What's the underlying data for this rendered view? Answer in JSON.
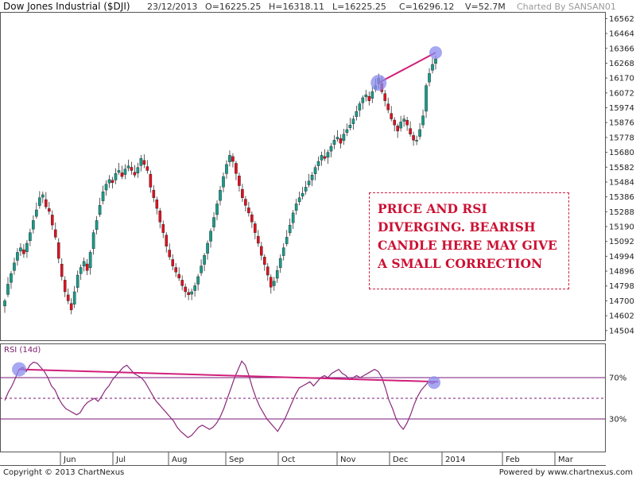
{
  "header": {
    "title": "Dow Jones Industrial ($DJI)",
    "date": "23/12/2013",
    "open": "O=16225.25",
    "high": "H=16318.11",
    "low": "L=16225.25",
    "close": "C=16296.12",
    "volume": "V=52.7M",
    "credit": "Charted By SANSAN01"
  },
  "footer": {
    "copyright": "Copyright © 2013 ChartNexus",
    "powered": "Powered by www.chartnexus.com"
  },
  "annotation": {
    "lines": [
      "PRICE AND RSI",
      "DIVERGING. BEARISH",
      "CANDLE HERE MAY GIVE",
      "A SMALL CORRECTION"
    ]
  },
  "colors": {
    "up": "#1a9a8a",
    "down": "#e01020",
    "rsi_line": "#8a2a7a",
    "rsi_levels": "#7a1a7a",
    "trendline": "#d0207a",
    "marker": "#8a8aee"
  },
  "chart_data": [
    {
      "type": "candlestick",
      "title": "Dow Jones Industrial ($DJI)",
      "y_ticks": [
        16562,
        16464,
        16366,
        16268,
        16170,
        16072,
        15974,
        15876,
        15778,
        15680,
        15582,
        15484,
        15386,
        15288,
        15190,
        15092,
        14994,
        14896,
        14798,
        14700,
        14602,
        14504
      ],
      "ylim": [
        14440,
        16580
      ],
      "x_tick_labels": [
        "Jun",
        "Jul",
        "Aug",
        "Sep",
        "Oct",
        "Nov",
        "Dec",
        "2014",
        "Feb",
        "Mar"
      ],
      "legend": "none",
      "grid": false,
      "series": [
        {
          "name": "Dow Jones Industrial ($DJI)",
          "values": [
            14700,
            14810,
            14880,
            14950,
            15020,
            15050,
            15010,
            15080,
            15150,
            15230,
            15300,
            15380,
            15400,
            15320,
            15290,
            15200,
            15120,
            14980,
            14860,
            14760,
            14700,
            14640,
            14760,
            14870,
            14920,
            14960,
            14900,
            15020,
            15150,
            15230,
            15330,
            15420,
            15470,
            15500,
            15480,
            15540,
            15560,
            15520,
            15570,
            15590,
            15560,
            15530,
            15580,
            15640,
            15600,
            15560,
            15450,
            15380,
            15310,
            15220,
            15150,
            15060,
            14990,
            14930,
            14890,
            14850,
            14800,
            14760,
            14740,
            14760,
            14800,
            14860,
            14930,
            15000,
            15080,
            15160,
            15250,
            15340,
            15430,
            15520,
            15600,
            15660,
            15620,
            15540,
            15460,
            15380,
            15330,
            15280,
            15220,
            15150,
            15080,
            15000,
            14940,
            14870,
            14790,
            14830,
            14900,
            14980,
            15050,
            15120,
            15200,
            15280,
            15340,
            15380,
            15410,
            15450,
            15490,
            15530,
            15580,
            15620,
            15660,
            15640,
            15680,
            15720,
            15760,
            15780,
            15740,
            15800,
            15830,
            15860,
            15900,
            15950,
            16000,
            16040,
            16060,
            16020,
            16080,
            16120,
            16170,
            16080,
            16020,
            15960,
            15900,
            15860,
            15820,
            15880,
            15900,
            15860,
            15800,
            15760,
            15760,
            15830,
            15920,
            16120,
            16200,
            16260,
            16296
          ]
        }
      ]
    },
    {
      "type": "line",
      "title": "RSI (14d)",
      "y_ticks": [
        "70%",
        "30%"
      ],
      "levels": [
        70,
        50,
        30
      ],
      "ylim": [
        0,
        100
      ],
      "legend": "none",
      "series": [
        {
          "name": "RSI (14d)",
          "values": [
            48,
            56,
            62,
            70,
            78,
            80,
            76,
            82,
            85,
            84,
            80,
            76,
            70,
            62,
            58,
            50,
            44,
            40,
            38,
            36,
            34,
            36,
            42,
            46,
            48,
            50,
            47,
            52,
            58,
            62,
            68,
            72,
            76,
            80,
            82,
            78,
            74,
            72,
            70,
            66,
            60,
            54,
            48,
            44,
            40,
            36,
            32,
            28,
            22,
            18,
            15,
            12,
            14,
            18,
            22,
            24,
            22,
            20,
            22,
            26,
            32,
            40,
            50,
            60,
            70,
            78,
            86,
            82,
            72,
            60,
            50,
            42,
            36,
            30,
            26,
            22,
            18,
            24,
            30,
            38,
            46,
            54,
            60,
            62,
            64,
            66,
            62,
            66,
            70,
            72,
            70,
            74,
            76,
            78,
            74,
            72,
            68,
            70,
            72,
            70,
            72,
            74,
            76,
            78,
            76,
            70,
            60,
            48,
            40,
            30,
            24,
            20,
            26,
            34,
            44,
            52,
            58,
            62,
            66,
            64,
            66
          ]
        }
      ]
    }
  ]
}
